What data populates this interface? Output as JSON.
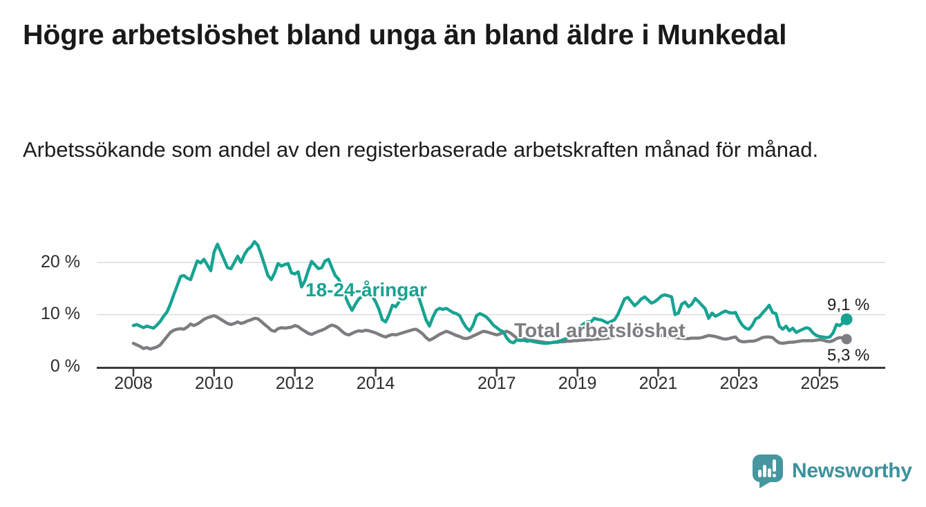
{
  "title": "Högre arbetslöshet bland unga än bland äldre i Munkedal",
  "subtitle": "Arbetssökande som andel av den registerbaserade arbetskraften månad för månad.",
  "branding": {
    "name": "Newsworthy",
    "icon": "bar-chart-speech-bubble-icon",
    "logo_color": "#46969f",
    "wordmark_color": "#3c929c"
  },
  "chart_data": {
    "type": "line",
    "title": "Högre arbetslöshet bland unga än bland äldre i Munkedal",
    "xlabel": "",
    "ylabel": "",
    "x_unit": "month",
    "x_start": {
      "year": 2008,
      "month": 1
    },
    "x_end": {
      "year": 2025,
      "month": 9
    },
    "x_ticks": [
      2008,
      2010,
      2012,
      2014,
      2017,
      2019,
      2021,
      2023,
      2025
    ],
    "x_tick_labels": [
      "2008",
      "2010",
      "2012",
      "2014",
      "2017",
      "2019",
      "2021",
      "2023",
      "2025"
    ],
    "y_ticks": [
      "0 %",
      "10 %",
      "20 %"
    ],
    "y_tick_values": [
      0,
      10,
      20
    ],
    "ylim": [
      0,
      26
    ],
    "grid": "horizontal",
    "grid_color": "#dcdcdc",
    "axis_color": "#3a3a3a",
    "legend_position": "inline-labels",
    "series": [
      {
        "name": "18-24-åringar",
        "color": "#17a392",
        "end_label": "9,1 %",
        "end_value": 9.1,
        "values": [
          7.9,
          8.1,
          7.8,
          7.5,
          7.8,
          7.6,
          7.4,
          8.0,
          8.7,
          9.7,
          10.5,
          12.0,
          13.8,
          15.5,
          17.3,
          17.5,
          17.0,
          16.7,
          18.5,
          20.3,
          19.9,
          20.6,
          19.5,
          18.4,
          22.0,
          23.5,
          22.0,
          20.5,
          19.0,
          18.8,
          20.0,
          21.2,
          20.0,
          21.5,
          22.5,
          23.0,
          24.0,
          23.3,
          21.5,
          19.5,
          17.5,
          16.7,
          18.0,
          19.8,
          19.3,
          19.6,
          19.8,
          18.0,
          17.8,
          18.2,
          15.3,
          16.5,
          18.5,
          20.2,
          19.5,
          18.8,
          19.0,
          20.3,
          20.6,
          19.0,
          17.5,
          16.8,
          15.5,
          13.5,
          12.0,
          10.8,
          12.0,
          13.0,
          13.5,
          13.8,
          14.0,
          13.5,
          12.5,
          11.0,
          9.0,
          8.6,
          10.0,
          11.8,
          11.5,
          12.5,
          13.5,
          14.0,
          14.3,
          14.0,
          14.5,
          13.0,
          11.0,
          9.0,
          7.8,
          9.5,
          10.8,
          11.2,
          11.0,
          11.2,
          10.8,
          10.4,
          10.2,
          9.8,
          8.5,
          7.5,
          6.9,
          8.0,
          9.8,
          10.2,
          9.9,
          9.5,
          8.8,
          8.0,
          7.5,
          7.0,
          6.7,
          5.5,
          4.8,
          4.6,
          5.2,
          5.0,
          5.1,
          4.9,
          5.0,
          4.8,
          4.7,
          4.6,
          4.5,
          4.5,
          4.6,
          4.7,
          4.8,
          5.0,
          5.2,
          5.6,
          6.0,
          6.5,
          7.0,
          7.8,
          8.3,
          8.6,
          8.6,
          9.3,
          9.1,
          9.0,
          8.7,
          8.4,
          8.7,
          9.0,
          10.0,
          11.5,
          13.0,
          13.3,
          12.5,
          11.7,
          12.3,
          13.0,
          13.4,
          12.8,
          12.2,
          12.5,
          13.0,
          13.6,
          13.8,
          13.6,
          13.4,
          10.0,
          10.3,
          12.0,
          12.4,
          11.5,
          12.0,
          13.1,
          12.5,
          11.8,
          11.1,
          9.3,
          10.3,
          9.7,
          10.0,
          10.4,
          10.7,
          10.4,
          10.3,
          10.4,
          9.0,
          8.0,
          7.4,
          7.2,
          8.0,
          9.2,
          9.5,
          10.3,
          11.0,
          11.8,
          10.4,
          10.2,
          7.8,
          7.2,
          7.8,
          6.9,
          7.4,
          6.6,
          6.9,
          7.2,
          7.5,
          7.3,
          6.5,
          6.0,
          5.8,
          5.7,
          5.6,
          5.7,
          6.5,
          8.1,
          7.9,
          8.5,
          9.1
        ]
      },
      {
        "name": "Total arbetslöshet",
        "color": "#7d7d81",
        "end_label": "5,3 %",
        "end_value": 5.3,
        "values": [
          4.5,
          4.2,
          3.9,
          3.5,
          3.7,
          3.4,
          3.6,
          3.8,
          4.2,
          5.0,
          5.8,
          6.6,
          7.0,
          7.2,
          7.3,
          7.2,
          7.6,
          8.2,
          7.9,
          8.2,
          8.6,
          9.1,
          9.4,
          9.6,
          9.8,
          9.5,
          9.1,
          8.7,
          8.3,
          8.1,
          8.3,
          8.6,
          8.3,
          8.5,
          8.8,
          9.0,
          9.3,
          9.2,
          8.7,
          8.1,
          7.6,
          7.0,
          6.8,
          7.3,
          7.5,
          7.4,
          7.5,
          7.6,
          7.9,
          7.7,
          7.2,
          6.8,
          6.4,
          6.2,
          6.5,
          6.8,
          7.0,
          7.3,
          7.7,
          8.0,
          7.8,
          7.4,
          6.8,
          6.3,
          6.1,
          6.4,
          6.7,
          6.9,
          6.8,
          7.0,
          6.9,
          6.7,
          6.5,
          6.2,
          5.9,
          5.7,
          6.0,
          6.2,
          6.1,
          6.3,
          6.5,
          6.7,
          6.9,
          7.1,
          7.2,
          6.8,
          6.3,
          5.6,
          5.1,
          5.4,
          5.8,
          6.2,
          6.5,
          6.8,
          6.6,
          6.3,
          6.0,
          5.8,
          5.5,
          5.4,
          5.6,
          5.9,
          6.2,
          6.5,
          6.8,
          6.7,
          6.5,
          6.3,
          6.1,
          6.3,
          6.6,
          6.8,
          6.5,
          6.0,
          5.5,
          5.3,
          5.4,
          5.2,
          5.1,
          5.0,
          4.9,
          4.8,
          4.7,
          4.6,
          4.6,
          4.7,
          4.7,
          4.8,
          4.8,
          4.9,
          4.9,
          5.0,
          5.0,
          5.1,
          5.1,
          5.2,
          5.2,
          5.3,
          5.3,
          5.4,
          5.4,
          5.5,
          5.6,
          5.7,
          5.9,
          6.1,
          6.4,
          6.6,
          6.7,
          6.7,
          6.6,
          6.5,
          6.4,
          6.3,
          6.2,
          6.1,
          6.1,
          6.0,
          5.9,
          5.8,
          5.7,
          5.6,
          5.5,
          5.5,
          5.4,
          5.4,
          5.5,
          5.5,
          5.5,
          5.6,
          5.8,
          6.0,
          5.9,
          5.8,
          5.6,
          5.4,
          5.3,
          5.4,
          5.6,
          5.7,
          5.0,
          4.8,
          4.8,
          4.9,
          4.9,
          5.0,
          5.3,
          5.6,
          5.7,
          5.7,
          5.6,
          5.0,
          4.6,
          4.5,
          4.6,
          4.7,
          4.7,
          4.8,
          4.9,
          5.0,
          5.0,
          5.0,
          5.0,
          5.1,
          5.2,
          5.1,
          4.9,
          4.8,
          5.0,
          5.4,
          5.6,
          5.5,
          5.3
        ]
      }
    ]
  }
}
